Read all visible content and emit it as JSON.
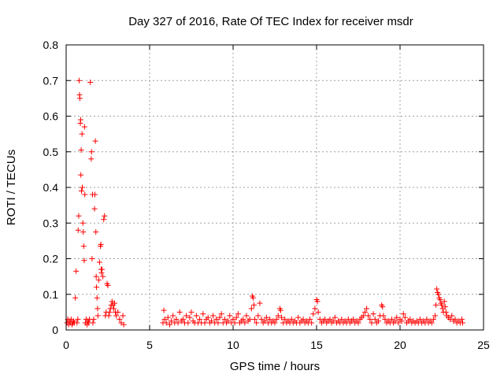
{
  "chart_data": {
    "type": "scatter",
    "title": "Day 327 of 2016, Rate Of TEC Index for receiver msdr",
    "xlabel": "GPS time / hours",
    "ylabel": "ROTI / TECUs",
    "xlim": [
      0,
      25
    ],
    "ylim": [
      0,
      0.8
    ],
    "xticks": [
      0,
      5,
      10,
      15,
      20,
      25
    ],
    "yticks": [
      0,
      0.1,
      0.2,
      0.3,
      0.4,
      0.5,
      0.6,
      0.7,
      0.8
    ],
    "xtick_labels": [
      "0",
      "5",
      "10",
      "15",
      "20",
      "25"
    ],
    "ytick_labels": [
      "0",
      "0.1",
      "0.2",
      "0.3",
      "0.4",
      "0.5",
      "0.6",
      "0.7",
      "0.8"
    ],
    "grid": true,
    "marker": "+",
    "marker_color": "#ff0000",
    "series": [
      {
        "points": [
          [
            0.05,
            0.02
          ],
          [
            0.1,
            0.03
          ],
          [
            0.15,
            0.015
          ],
          [
            0.2,
            0.025
          ],
          [
            0.25,
            0.02
          ],
          [
            0.3,
            0.03
          ],
          [
            0.35,
            0.015
          ],
          [
            0.4,
            0.02
          ],
          [
            0.45,
            0.025
          ],
          [
            0.5,
            0.02
          ],
          [
            0.55,
            0.09
          ],
          [
            0.6,
            0.165
          ],
          [
            0.65,
            0.02
          ],
          [
            0.7,
            0.03
          ],
          [
            0.72,
            0.28
          ],
          [
            0.75,
            0.32
          ],
          [
            0.78,
            0.7
          ],
          [
            0.8,
            0.66
          ],
          [
            0.82,
            0.65
          ],
          [
            0.85,
            0.58
          ],
          [
            0.87,
            0.59
          ],
          [
            0.88,
            0.435
          ],
          [
            0.9,
            0.505
          ],
          [
            0.92,
            0.39
          ],
          [
            0.95,
            0.55
          ],
          [
            0.97,
            0.4
          ],
          [
            1.0,
            0.3
          ],
          [
            1.02,
            0.275
          ],
          [
            1.05,
            0.235
          ],
          [
            1.08,
            0.195
          ],
          [
            1.1,
            0.57
          ],
          [
            1.12,
            0.38
          ],
          [
            1.15,
            0.02
          ],
          [
            1.2,
            0.03
          ],
          [
            1.25,
            0.015
          ],
          [
            1.3,
            0.025
          ],
          [
            1.35,
            0.02
          ],
          [
            1.4,
            0.03
          ],
          [
            1.45,
            0.695
          ],
          [
            1.5,
            0.48
          ],
          [
            1.52,
            0.5
          ],
          [
            1.55,
            0.2
          ],
          [
            1.58,
            0.38
          ],
          [
            1.6,
            0.02
          ],
          [
            1.65,
            0.03
          ],
          [
            1.7,
            0.34
          ],
          [
            1.72,
            0.38
          ],
          [
            1.75,
            0.53
          ],
          [
            1.78,
            0.275
          ],
          [
            1.8,
            0.15
          ],
          [
            1.82,
            0.12
          ],
          [
            1.85,
            0.09
          ],
          [
            1.88,
            0.06
          ],
          [
            1.9,
            0.04
          ],
          [
            1.95,
            0.14
          ],
          [
            2.0,
            0.19
          ],
          [
            2.05,
            0.235
          ],
          [
            2.08,
            0.24
          ],
          [
            2.1,
            0.17
          ],
          [
            2.12,
            0.16
          ],
          [
            2.15,
            0.17
          ],
          [
            2.2,
            0.15
          ],
          [
            2.25,
            0.31
          ],
          [
            2.3,
            0.32
          ],
          [
            2.35,
            0.04
          ],
          [
            2.4,
            0.05
          ],
          [
            2.45,
            0.13
          ],
          [
            2.5,
            0.125
          ],
          [
            2.55,
            0.04
          ],
          [
            2.6,
            0.05
          ],
          [
            2.65,
            0.06
          ],
          [
            2.7,
            0.07
          ],
          [
            2.75,
            0.08
          ],
          [
            2.8,
            0.07
          ],
          [
            2.85,
            0.06
          ],
          [
            2.9,
            0.075
          ],
          [
            2.95,
            0.05
          ],
          [
            3.0,
            0.04
          ],
          [
            3.1,
            0.05
          ],
          [
            3.2,
            0.03
          ],
          [
            3.3,
            0.02
          ],
          [
            3.4,
            0.04
          ],
          [
            3.45,
            0.015
          ],
          [
            5.8,
            0.02
          ],
          [
            5.85,
            0.055
          ],
          [
            5.9,
            0.03
          ],
          [
            6.0,
            0.02
          ],
          [
            6.1,
            0.035
          ],
          [
            6.2,
            0.015
          ],
          [
            6.3,
            0.025
          ],
          [
            6.4,
            0.04
          ],
          [
            6.5,
            0.02
          ],
          [
            6.6,
            0.03
          ],
          [
            6.7,
            0.02
          ],
          [
            6.8,
            0.05
          ],
          [
            6.9,
            0.025
          ],
          [
            7.0,
            0.03
          ],
          [
            7.1,
            0.02
          ],
          [
            7.2,
            0.04
          ],
          [
            7.3,
            0.02
          ],
          [
            7.4,
            0.035
          ],
          [
            7.5,
            0.05
          ],
          [
            7.6,
            0.025
          ],
          [
            7.7,
            0.02
          ],
          [
            7.8,
            0.04
          ],
          [
            7.9,
            0.02
          ],
          [
            8.0,
            0.03
          ],
          [
            8.1,
            0.02
          ],
          [
            8.2,
            0.045
          ],
          [
            8.3,
            0.02
          ],
          [
            8.4,
            0.03
          ],
          [
            8.5,
            0.035
          ],
          [
            8.6,
            0.02
          ],
          [
            8.7,
            0.025
          ],
          [
            8.8,
            0.04
          ],
          [
            8.9,
            0.02
          ],
          [
            9.0,
            0.03
          ],
          [
            9.1,
            0.02
          ],
          [
            9.2,
            0.035
          ],
          [
            9.3,
            0.045
          ],
          [
            9.4,
            0.02
          ],
          [
            9.5,
            0.03
          ],
          [
            9.6,
            0.02
          ],
          [
            9.7,
            0.025
          ],
          [
            9.8,
            0.04
          ],
          [
            9.9,
            0.02
          ],
          [
            10.0,
            0.03
          ],
          [
            10.1,
            0.02
          ],
          [
            10.2,
            0.035
          ],
          [
            10.3,
            0.045
          ],
          [
            10.4,
            0.02
          ],
          [
            10.5,
            0.025
          ],
          [
            10.6,
            0.03
          ],
          [
            10.7,
            0.02
          ],
          [
            10.8,
            0.04
          ],
          [
            10.9,
            0.025
          ],
          [
            11.0,
            0.03
          ],
          [
            11.1,
            0.06
          ],
          [
            11.15,
            0.095
          ],
          [
            11.2,
            0.09
          ],
          [
            11.25,
            0.07
          ],
          [
            11.3,
            0.03
          ],
          [
            11.4,
            0.02
          ],
          [
            11.5,
            0.04
          ],
          [
            11.6,
            0.075
          ],
          [
            11.7,
            0.03
          ],
          [
            11.8,
            0.02
          ],
          [
            11.9,
            0.025
          ],
          [
            12.0,
            0.035
          ],
          [
            12.1,
            0.02
          ],
          [
            12.2,
            0.03
          ],
          [
            12.3,
            0.02
          ],
          [
            12.4,
            0.025
          ],
          [
            12.5,
            0.02
          ],
          [
            12.6,
            0.03
          ],
          [
            12.7,
            0.04
          ],
          [
            12.8,
            0.06
          ],
          [
            12.85,
            0.055
          ],
          [
            12.9,
            0.035
          ],
          [
            13.0,
            0.02
          ],
          [
            13.1,
            0.03
          ],
          [
            13.2,
            0.02
          ],
          [
            13.3,
            0.025
          ],
          [
            13.4,
            0.02
          ],
          [
            13.5,
            0.03
          ],
          [
            13.6,
            0.02
          ],
          [
            13.7,
            0.025
          ],
          [
            13.8,
            0.02
          ],
          [
            13.9,
            0.035
          ],
          [
            14.0,
            0.02
          ],
          [
            14.1,
            0.025
          ],
          [
            14.2,
            0.03
          ],
          [
            14.3,
            0.02
          ],
          [
            14.4,
            0.025
          ],
          [
            14.5,
            0.02
          ],
          [
            14.6,
            0.03
          ],
          [
            14.7,
            0.02
          ],
          [
            14.8,
            0.045
          ],
          [
            14.9,
            0.06
          ],
          [
            15.0,
            0.085
          ],
          [
            15.05,
            0.08
          ],
          [
            15.1,
            0.05
          ],
          [
            15.2,
            0.03
          ],
          [
            15.3,
            0.02
          ],
          [
            15.4,
            0.025
          ],
          [
            15.5,
            0.03
          ],
          [
            15.6,
            0.02
          ],
          [
            15.7,
            0.025
          ],
          [
            15.8,
            0.03
          ],
          [
            15.9,
            0.02
          ],
          [
            16.0,
            0.025
          ],
          [
            16.1,
            0.035
          ],
          [
            16.2,
            0.02
          ],
          [
            16.3,
            0.025
          ],
          [
            16.4,
            0.02
          ],
          [
            16.5,
            0.03
          ],
          [
            16.6,
            0.02
          ],
          [
            16.7,
            0.025
          ],
          [
            16.8,
            0.02
          ],
          [
            16.9,
            0.03
          ],
          [
            17.0,
            0.02
          ],
          [
            17.1,
            0.025
          ],
          [
            17.2,
            0.03
          ],
          [
            17.3,
            0.02
          ],
          [
            17.4,
            0.025
          ],
          [
            17.5,
            0.02
          ],
          [
            17.6,
            0.03
          ],
          [
            17.7,
            0.035
          ],
          [
            17.8,
            0.04
          ],
          [
            17.9,
            0.05
          ],
          [
            18.0,
            0.06
          ],
          [
            18.1,
            0.04
          ],
          [
            18.2,
            0.03
          ],
          [
            18.3,
            0.02
          ],
          [
            18.4,
            0.045
          ],
          [
            18.5,
            0.03
          ],
          [
            18.6,
            0.02
          ],
          [
            18.7,
            0.025
          ],
          [
            18.8,
            0.04
          ],
          [
            18.9,
            0.07
          ],
          [
            18.95,
            0.065
          ],
          [
            19.0,
            0.04
          ],
          [
            19.1,
            0.03
          ],
          [
            19.2,
            0.02
          ],
          [
            19.3,
            0.025
          ],
          [
            19.4,
            0.02
          ],
          [
            19.5,
            0.03
          ],
          [
            19.6,
            0.02
          ],
          [
            19.7,
            0.025
          ],
          [
            19.8,
            0.035
          ],
          [
            19.9,
            0.02
          ],
          [
            20.0,
            0.03
          ],
          [
            20.1,
            0.025
          ],
          [
            20.2,
            0.045
          ],
          [
            20.3,
            0.035
          ],
          [
            20.4,
            0.02
          ],
          [
            20.5,
            0.025
          ],
          [
            20.6,
            0.03
          ],
          [
            20.7,
            0.02
          ],
          [
            20.8,
            0.025
          ],
          [
            20.9,
            0.02
          ],
          [
            21.0,
            0.025
          ],
          [
            21.1,
            0.02
          ],
          [
            21.2,
            0.03
          ],
          [
            21.3,
            0.02
          ],
          [
            21.4,
            0.025
          ],
          [
            21.5,
            0.02
          ],
          [
            21.6,
            0.03
          ],
          [
            21.7,
            0.02
          ],
          [
            21.8,
            0.025
          ],
          [
            21.9,
            0.02
          ],
          [
            22.0,
            0.03
          ],
          [
            22.1,
            0.04
          ],
          [
            22.15,
            0.07
          ],
          [
            22.2,
            0.115
          ],
          [
            22.25,
            0.105
          ],
          [
            22.3,
            0.1
          ],
          [
            22.35,
            0.09
          ],
          [
            22.4,
            0.085
          ],
          [
            22.45,
            0.075
          ],
          [
            22.5,
            0.07
          ],
          [
            22.55,
            0.06
          ],
          [
            22.6,
            0.05
          ],
          [
            22.65,
            0.08
          ],
          [
            22.7,
            0.065
          ],
          [
            22.75,
            0.05
          ],
          [
            22.8,
            0.04
          ],
          [
            22.9,
            0.035
          ],
          [
            23.0,
            0.03
          ],
          [
            23.1,
            0.04
          ],
          [
            23.2,
            0.025
          ],
          [
            23.3,
            0.03
          ],
          [
            23.4,
            0.02
          ],
          [
            23.5,
            0.025
          ],
          [
            23.6,
            0.02
          ],
          [
            23.7,
            0.03
          ],
          [
            23.75,
            0.02
          ]
        ]
      }
    ]
  }
}
